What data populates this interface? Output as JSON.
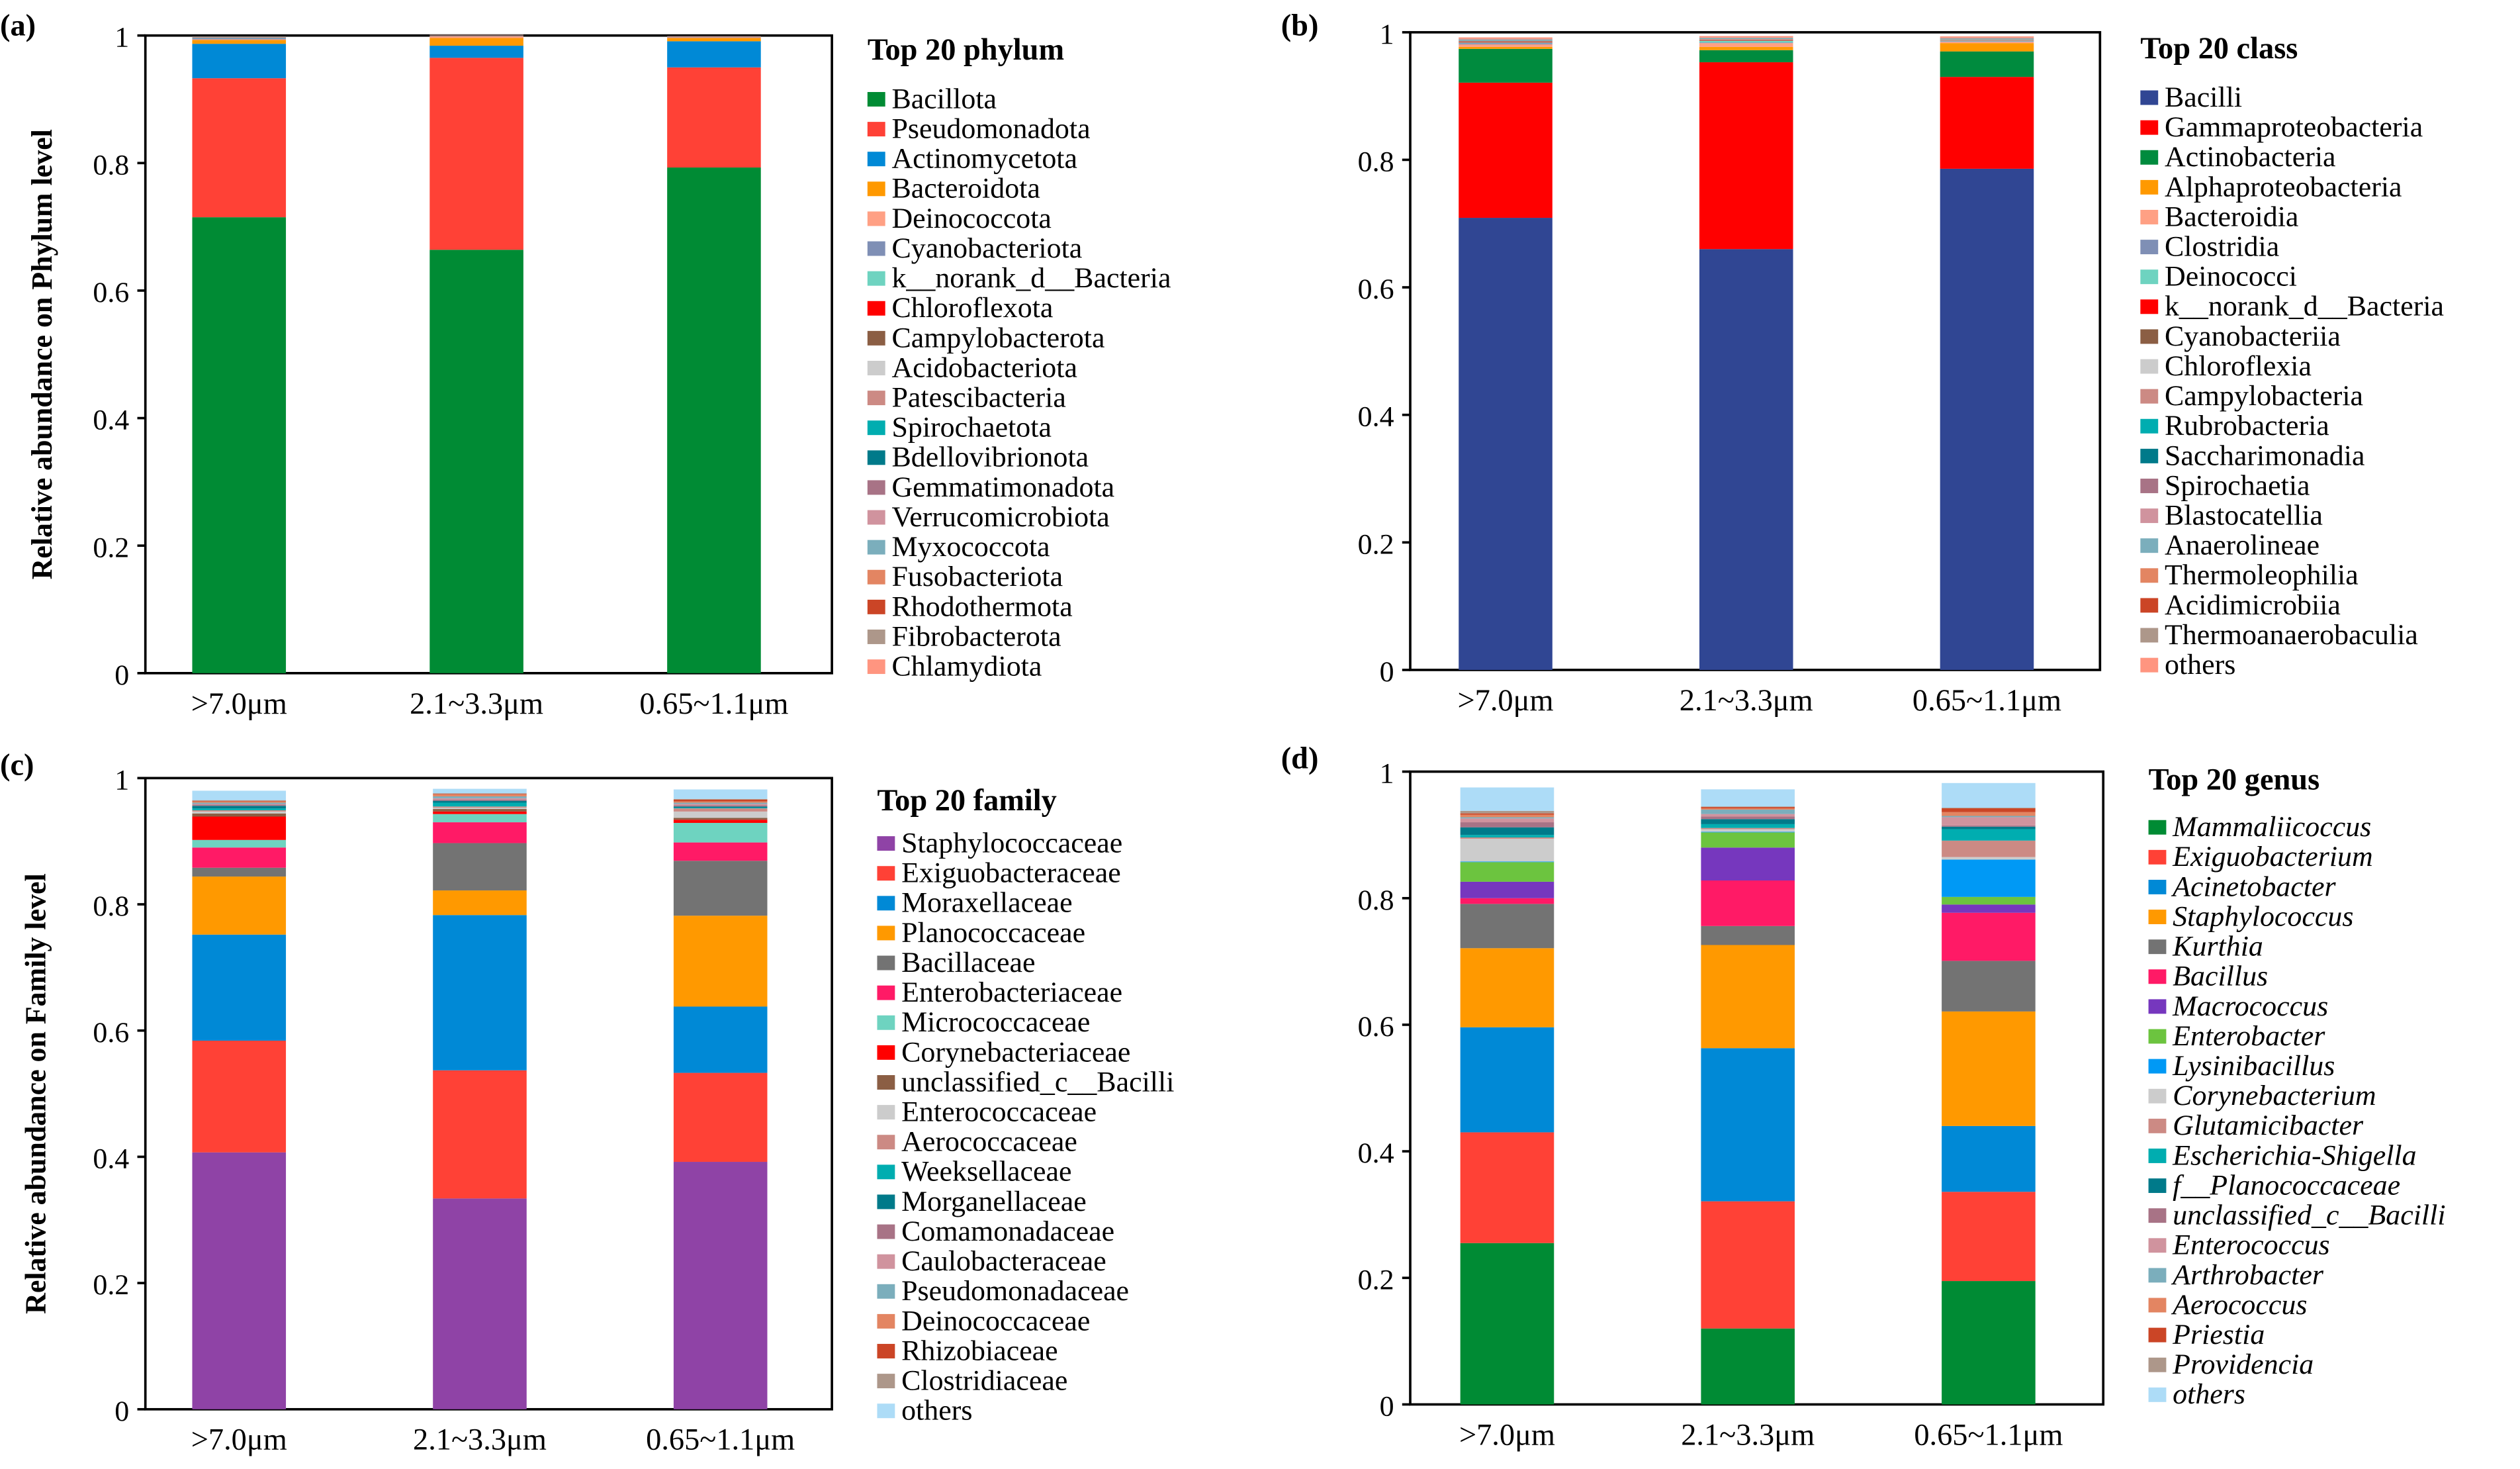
{
  "chart_data": [
    {
      "type": "bar",
      "stacked": true,
      "panel_label": "(a)",
      "ylabel": "Relative abundance on Phylum level",
      "ylim": [
        0,
        1
      ],
      "yticks": [
        "0",
        "0.2",
        "0.4",
        "0.6",
        "0.8",
        "1"
      ],
      "categories": [
        ">7.0μm",
        "2.1~3.3μm",
        "0.65~1.1μm"
      ],
      "legend_title": "Top 20 phylum",
      "legend_italic": false,
      "series": [
        {
          "name": "Bacillota",
          "color": "#008B34",
          "values": [
            0.715,
            0.664,
            0.793
          ]
        },
        {
          "name": "Pseudomonadota",
          "color": "#FF4136",
          "values": [
            0.218,
            0.301,
            0.157
          ]
        },
        {
          "name": "Actinomycetota",
          "color": "#0089D6",
          "values": [
            0.054,
            0.019,
            0.041
          ]
        },
        {
          "name": "Bacteroidota",
          "color": "#FF9900",
          "values": [
            0.006,
            0.012,
            0.005
          ]
        },
        {
          "name": "Deinococcota",
          "color": "#FFA084",
          "values": [
            0.001,
            0.003,
            0.001
          ]
        },
        {
          "name": "Cyanobacteriota",
          "color": "#7F8FB5",
          "values": [
            0.002,
            0.0005,
            0.0005
          ]
        },
        {
          "name": "k__norank_d__Bacteria",
          "color": "#6ED3C0",
          "values": [
            0.0005,
            0.0003,
            0.0003
          ]
        },
        {
          "name": "Chloroflexota",
          "color": "#FF0000",
          "values": [
            0.0003,
            0.0002,
            0.0002
          ]
        },
        {
          "name": "Campylobacterota",
          "color": "#8B5E44",
          "values": [
            0.0003,
            0.0002,
            0.0002
          ]
        },
        {
          "name": "Acidobacteriota",
          "color": "#CCCCCC",
          "values": [
            0.0003,
            0.0002,
            0.0002
          ]
        },
        {
          "name": "Patescibacteria",
          "color": "#CC8A84",
          "values": [
            0.0002,
            0.0002,
            0.0002
          ]
        },
        {
          "name": "Spirochaetota",
          "color": "#00ADB0",
          "values": [
            0.0002,
            0.0001,
            0.0001
          ]
        },
        {
          "name": "Bdellovibrionota",
          "color": "#007A8A",
          "values": [
            0.0002,
            0.0001,
            0.0001
          ]
        },
        {
          "name": "Gemmatimonadota",
          "color": "#A87386",
          "values": [
            0.0002,
            0.0001,
            0.0001
          ]
        },
        {
          "name": "Verrucomicrobiota",
          "color": "#D0939E",
          "values": [
            0.0001,
            0.0001,
            0.0001
          ]
        },
        {
          "name": "Myxococcota",
          "color": "#7BAEBC",
          "values": [
            0.0001,
            0.0001,
            0.0001
          ]
        },
        {
          "name": "Fusobacteriota",
          "color": "#E38562",
          "values": [
            0.0001,
            0.0001,
            0.0001
          ]
        },
        {
          "name": "Rhodothermota",
          "color": "#CB4526",
          "values": [
            0.0001,
            0.0001,
            0.0001
          ]
        },
        {
          "name": "Fibrobacterota",
          "color": "#AD978A",
          "values": [
            0.0001,
            0.0001,
            0.0001
          ]
        },
        {
          "name": "Chlamydiota",
          "color": "#FF9580",
          "values": [
            0.0001,
            0.0001,
            0.0001
          ]
        }
      ]
    },
    {
      "type": "bar",
      "stacked": true,
      "panel_label": "(b)",
      "ylabel": "Relative abundance on Class level",
      "ylim": [
        0,
        1
      ],
      "yticks": [
        "0",
        "0.2",
        "0.4",
        "0.6",
        "0.8",
        "1"
      ],
      "categories": [
        ">7.0μm",
        "2.1~3.3μm",
        "0.65~1.1μm"
      ],
      "legend_title": "Top 20 class",
      "legend_italic": false,
      "series": [
        {
          "name": "Bacilli",
          "color": "#304693",
          "values": [
            0.709,
            0.66,
            0.786
          ]
        },
        {
          "name": "Gammaproteobacteria",
          "color": "#FF0000",
          "values": [
            0.212,
            0.293,
            0.144
          ]
        },
        {
          "name": "Actinobacteria",
          "color": "#008B3E",
          "values": [
            0.053,
            0.019,
            0.04
          ]
        },
        {
          "name": "Alphaproteobacteria",
          "color": "#FF9900",
          "values": [
            0.003,
            0.005,
            0.013
          ]
        },
        {
          "name": "Bacteroidia",
          "color": "#FFA084",
          "values": [
            0.004,
            0.006,
            0.002
          ]
        },
        {
          "name": "Clostridia",
          "color": "#7F8FB5",
          "values": [
            0.002,
            0.001,
            0.001
          ]
        },
        {
          "name": "Deinococci",
          "color": "#6ED3C0",
          "values": [
            0.001,
            0.003,
            0.001
          ]
        },
        {
          "name": "k__norank_d__Bacteria",
          "color": "#FF0000",
          "values": [
            0.001,
            0.001,
            0.0005
          ]
        },
        {
          "name": "Cyanobacteriia",
          "color": "#8B5E44",
          "values": [
            0.001,
            0.0005,
            0.0005
          ]
        },
        {
          "name": "Chloroflexia",
          "color": "#CCCCCC",
          "values": [
            0.0005,
            0.0005,
            0.0005
          ]
        },
        {
          "name": "Campylobacteria",
          "color": "#CC8A84",
          "values": [
            0.0005,
            0.0005,
            0.0005
          ]
        },
        {
          "name": "Rubrobacteria",
          "color": "#00ADB0",
          "values": [
            0.0005,
            0.0005,
            0.0005
          ]
        },
        {
          "name": "Saccharimonadia",
          "color": "#007A8A",
          "values": [
            0.0005,
            0.0003,
            0.0003
          ]
        },
        {
          "name": "Spirochaetia",
          "color": "#A87386",
          "values": [
            0.0005,
            0.0003,
            0.0003
          ]
        },
        {
          "name": "Blastocatellia",
          "color": "#D0939E",
          "values": [
            0.0003,
            0.0003,
            0.0003
          ]
        },
        {
          "name": "Anaerolineae",
          "color": "#7BAEBC",
          "values": [
            0.0003,
            0.0003,
            0.0003
          ]
        },
        {
          "name": "Thermoleophilia",
          "color": "#E38562",
          "values": [
            0.0003,
            0.0003,
            0.0003
          ]
        },
        {
          "name": "Acidimicrobiia",
          "color": "#CB4526",
          "values": [
            0.0003,
            0.0003,
            0.0003
          ]
        },
        {
          "name": "Thermoanaerobaculia",
          "color": "#AD978A",
          "values": [
            0.0003,
            0.0003,
            0.0003
          ]
        },
        {
          "name": "others",
          "color": "#FF9580",
          "values": [
            0.002,
            0.002,
            0.002
          ]
        }
      ]
    },
    {
      "type": "bar",
      "stacked": true,
      "panel_label": "(c)",
      "ylabel": "Relative abundance on Family level",
      "ylim": [
        0,
        1
      ],
      "yticks": [
        "0",
        "0.2",
        "0.4",
        "0.6",
        "0.8",
        "1"
      ],
      "categories": [
        ">7.0μm",
        "2.1~3.3μm",
        "0.65~1.1μm"
      ],
      "legend_title": "Top 20 family",
      "legend_italic": false,
      "series": [
        {
          "name": "Staphylococcaceae",
          "color": "#8F43A6",
          "values": [
            0.407,
            0.334,
            0.392
          ]
        },
        {
          "name": "Exiguobacteraceae",
          "color": "#FF4136",
          "values": [
            0.177,
            0.203,
            0.141
          ]
        },
        {
          "name": "Moraxellaceae",
          "color": "#0089D6",
          "values": [
            0.168,
            0.246,
            0.105
          ]
        },
        {
          "name": "Planococcaceae",
          "color": "#FF9900",
          "values": [
            0.092,
            0.039,
            0.144
          ]
        },
        {
          "name": "Bacillaceae",
          "color": "#737373",
          "values": [
            0.014,
            0.075,
            0.087
          ]
        },
        {
          "name": "Enterobacteriaceae",
          "color": "#FF1A66",
          "values": [
            0.032,
            0.033,
            0.029
          ]
        },
        {
          "name": "Micrococcaceae",
          "color": "#6ED3C0",
          "values": [
            0.012,
            0.013,
            0.031
          ]
        },
        {
          "name": "Corynebacteriaceae",
          "color": "#FF0000",
          "values": [
            0.037,
            0.004,
            0.005
          ]
        },
        {
          "name": "unclassified_c__Bacilli",
          "color": "#8B5E44",
          "values": [
            0.005,
            0.004,
            0.003
          ]
        },
        {
          "name": "Enterococcaceae",
          "color": "#CCCCCC",
          "values": [
            0.003,
            0.002,
            0.01
          ]
        },
        {
          "name": "Aerococcaceae",
          "color": "#CC8A84",
          "values": [
            0.002,
            0.002,
            0.005
          ]
        },
        {
          "name": "Weeksellaceae",
          "color": "#00ADB0",
          "values": [
            0.003,
            0.006,
            0.001
          ]
        },
        {
          "name": "Morganellaceae",
          "color": "#007A8A",
          "values": [
            0.004,
            0.003,
            0.002
          ]
        },
        {
          "name": "Comamonadaceae",
          "color": "#A87386",
          "values": [
            0.002,
            0.002,
            0.002
          ]
        },
        {
          "name": "Caulobacteraceae",
          "color": "#D0939E",
          "values": [
            0.001,
            0.002,
            0.002
          ]
        },
        {
          "name": "Pseudomonadaceae",
          "color": "#7BAEBC",
          "values": [
            0.002,
            0.003,
            0.002
          ]
        },
        {
          "name": "Deinococcaceae",
          "color": "#E38562",
          "values": [
            0.002,
            0.003,
            0.002
          ]
        },
        {
          "name": "Rhizobiaceae",
          "color": "#CB4526",
          "values": [
            0.001,
            0.001,
            0.003
          ]
        },
        {
          "name": "Clostridiaceae",
          "color": "#AD978A",
          "values": [
            0.001,
            0.001,
            0.001
          ]
        },
        {
          "name": "others",
          "color": "#ADDCF7",
          "values": [
            0.015,
            0.007,
            0.015
          ]
        }
      ]
    },
    {
      "type": "bar",
      "stacked": true,
      "panel_label": "(d)",
      "ylabel": "Relative abundance on Genus level",
      "ylim": [
        0,
        1
      ],
      "yticks": [
        "0",
        "0.2",
        "0.4",
        "0.6",
        "0.8",
        "1"
      ],
      "categories": [
        ">7.0μm",
        "2.1~3.3μm",
        "0.65~1.1μm"
      ],
      "legend_title": "Top 20 genus",
      "legend_italic": true,
      "series": [
        {
          "name": "Mammaliicoccus",
          "color": "#008B34",
          "values": [
            0.255,
            0.12,
            0.195
          ]
        },
        {
          "name": "Exiguobacterium",
          "color": "#FF4136",
          "values": [
            0.175,
            0.201,
            0.141
          ]
        },
        {
          "name": "Acinetobacter",
          "color": "#0089D6",
          "values": [
            0.166,
            0.242,
            0.104
          ]
        },
        {
          "name": "Staphylococcus",
          "color": "#FF9900",
          "values": [
            0.125,
            0.163,
            0.181
          ]
        },
        {
          "name": "Kurthia",
          "color": "#737373",
          "values": [
            0.07,
            0.03,
            0.08
          ]
        },
        {
          "name": "Bacillus",
          "color": "#FF1A66",
          "values": [
            0.009,
            0.072,
            0.076
          ]
        },
        {
          "name": "Macrococcus",
          "color": "#7637BE",
          "values": [
            0.026,
            0.052,
            0.013
          ]
        },
        {
          "name": "Enterobacter",
          "color": "#6CC43F",
          "values": [
            0.031,
            0.024,
            0.012
          ]
        },
        {
          "name": "Lysinibacillus",
          "color": "#0099F5",
          "values": [
            0.001,
            0.001,
            0.059
          ]
        },
        {
          "name": "Corynebacterium",
          "color": "#CCCCCC",
          "values": [
            0.036,
            0.004,
            0.004
          ]
        },
        {
          "name": "Glutamicibacter",
          "color": "#CC8A84",
          "values": [
            0.002,
            0.002,
            0.026
          ]
        },
        {
          "name": "Escherichia-Shigella",
          "color": "#00ADB0",
          "values": [
            0.004,
            0.006,
            0.018
          ]
        },
        {
          "name": "f__Planococcaceae",
          "color": "#007A8A",
          "values": [
            0.012,
            0.008,
            0.004
          ]
        },
        {
          "name": "unclassified_c__Bacilli",
          "color": "#A87386",
          "values": [
            0.008,
            0.004,
            0.002
          ]
        },
        {
          "name": "Enterococcus",
          "color": "#D0939E",
          "values": [
            0.006,
            0.004,
            0.013
          ]
        },
        {
          "name": "Arthrobacter",
          "color": "#7BAEBC",
          "values": [
            0.002,
            0.007,
            0.002
          ]
        },
        {
          "name": "Aerococcus",
          "color": "#E38562",
          "values": [
            0.004,
            0.002,
            0.006
          ]
        },
        {
          "name": "Priestia",
          "color": "#CB4526",
          "values": [
            0.002,
            0.002,
            0.006
          ]
        },
        {
          "name": "Providencia",
          "color": "#AD978A",
          "values": [
            0.004,
            0.001,
            0.001
          ]
        },
        {
          "name": "others",
          "color": "#ADDCF7",
          "values": [
            0.037,
            0.027,
            0.039
          ]
        }
      ]
    }
  ]
}
